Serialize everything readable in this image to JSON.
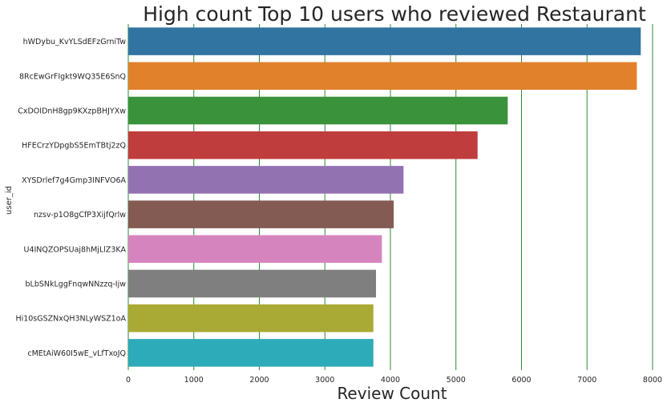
{
  "chart_data": {
    "type": "bar",
    "orientation": "horizontal",
    "title": "High count Top 10 users who reviewed Restaurant",
    "xlabel": "Review Count",
    "ylabel": "user_id",
    "xlim": [
      0,
      8000
    ],
    "xticks": [
      0,
      1000,
      2000,
      3000,
      4000,
      5000,
      6000,
      7000,
      8000
    ],
    "grid": "vertical",
    "grid_color": "#2e8b2e",
    "categories": [
      "hWDybu_KvYLSdEFzGrniTw",
      "8RcEwGrFIgkt9WQ35E6SnQ",
      "CxDOIDnH8gp9KXzpBHJYXw",
      "HFECrzYDpgbS5EmTBtj2zQ",
      "XYSDrlef7g4Gmp3INFVO6A",
      "nzsv-p1O8gCfP3XijfQrlw",
      "U4INQZOPSUaj8hMjLlZ3KA",
      "bLbSNkLggFnqwNNzzq-Ijw",
      "Hi10sGSZNxQH3NLyWSZ1oA",
      "cMEtAiW60I5wE_vLfTxoJQ"
    ],
    "values": [
      7820,
      7760,
      5790,
      5330,
      4200,
      4050,
      3870,
      3780,
      3740,
      3740
    ],
    "colors": [
      "#3274a1",
      "#e1812c",
      "#3a923a",
      "#c03d3e",
      "#9372b2",
      "#845b53",
      "#d684bd",
      "#7f7f7f",
      "#a9aa35",
      "#2eabb8"
    ]
  }
}
